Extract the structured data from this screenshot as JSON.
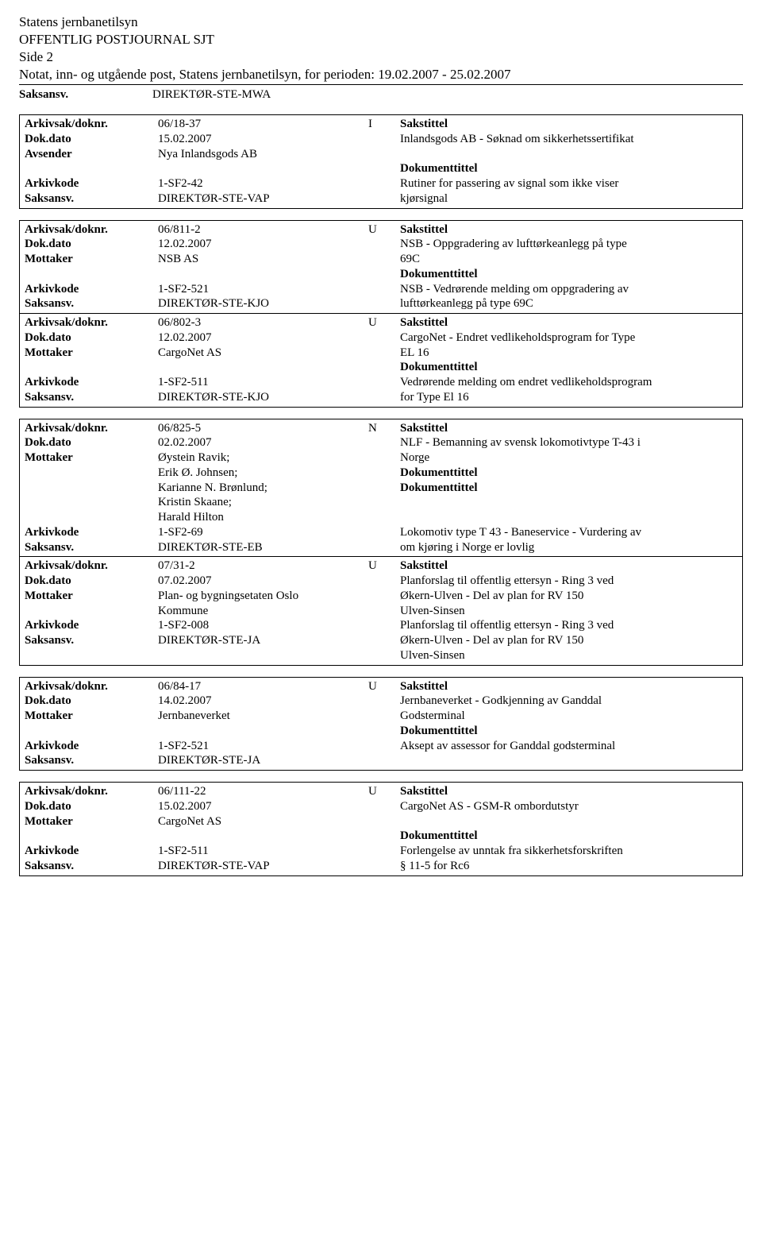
{
  "header": {
    "org": "Statens jernbanetilsyn",
    "journal": "OFFENTLIG POSTJOURNAL SJT",
    "side": "Side 2",
    "notat": "Notat, inn- og utgående post, Statens jernbanetilsyn, for perioden: 19.02.2007 - 25.02.2007",
    "saksansv_label": "Saksansv.",
    "saksansv_value": "DIREKTØR-STE-MWA"
  },
  "labels": {
    "arkivsak": "Arkivsak/doknr.",
    "dokdato": "Dok.dato",
    "avsender": "Avsender",
    "mottaker": "Mottaker",
    "arkivkode": "Arkivkode",
    "saksansv": "Saksansv.",
    "sakstittel": "Sakstittel",
    "dokumenttittel": "Dokumenttittel"
  },
  "entries": [
    {
      "arkivsak": "06/18-37",
      "iun": "I",
      "dokdato": "15.02.2007",
      "party_label": "Avsender",
      "party": "Nya Inlandsgods AB",
      "arkivkode": "1-SF2-42",
      "saksansv": "DIREKTØR-STE-VAP",
      "sakstittel": "Inlandsgods AB - Søknad om sikkerhetssertifikat",
      "dokumenttittel": "Rutiner for passering av signal som ikke viser kjørsignal"
    },
    {
      "arkivsak": "06/811-2",
      "iun": "U",
      "dokdato": "12.02.2007",
      "party_label": "Mottaker",
      "party": "NSB AS",
      "arkivkode": "1-SF2-521",
      "saksansv": "DIREKTØR-STE-KJO",
      "sakstittel": "NSB - Oppgradering av lufttørkeanlegg på type 69C",
      "dokumenttittel": "NSB - Vedrørende melding om oppgradering av lufttørkeanlegg på type 69C"
    },
    {
      "arkivsak": "06/802-3",
      "iun": "U",
      "dokdato": "12.02.2007",
      "party_label": "Mottaker",
      "party": "CargoNet AS",
      "arkivkode": "1-SF2-511",
      "saksansv": "DIREKTØR-STE-KJO",
      "sakstittel": "CargoNet - Endret vedlikeholdsprogram for Type EL 16",
      "dokumenttittel": "Vedrørende melding om endret vedlikeholdsprogram for Type El 16"
    },
    {
      "arkivsak": "06/825-5",
      "iun": "N",
      "dokdato": "02.02.2007",
      "party_label": "Mottaker",
      "party": "Øystein Ravik;\nErik Ø. Johnsen;\nKarianne N. Brønlund;\nKristin Skaane;\nHarald Hilton",
      "arkivkode": "1-SF2-69",
      "saksansv": "DIREKTØR-STE-EB",
      "sakstittel": "NLF - Bemanning av svensk lokomotivtype T-43 i Norge",
      "dokumenttittel": "Lokomotiv type T 43 - Baneservice - Vurdering av om kjøring i Norge er lovlig"
    },
    {
      "arkivsak": "07/31-2",
      "iun": "U",
      "dokdato": "07.02.2007",
      "party_label": "Mottaker",
      "party": "Plan- og bygningsetaten Oslo Kommune",
      "arkivkode": "1-SF2-008",
      "saksansv": "DIREKTØR-STE-JA",
      "sakstittel": "Planforslag til offentlig ettersyn - Ring 3 ved Økern-Ulven - Del av plan for RV 150 Ulven-Sinsen",
      "dokumenttittel": "Planforslag til offentlig ettersyn - Ring 3 ved Økern-Ulven - Del av plan for RV 150 Ulven-Sinsen"
    },
    {
      "arkivsak": "06/84-17",
      "iun": "U",
      "dokdato": "14.02.2007",
      "party_label": "Mottaker",
      "party": "Jernbaneverket",
      "arkivkode": "1-SF2-521",
      "saksansv": "DIREKTØR-STE-JA",
      "sakstittel": "Jernbaneverket - Godkjenning av Ganddal Godsterminal",
      "dokumenttittel": "Aksept av assessor for Ganddal godsterminal"
    },
    {
      "arkivsak": "06/111-22",
      "iun": "U",
      "dokdato": "15.02.2007",
      "party_label": "Mottaker",
      "party": "CargoNet AS",
      "arkivkode": "1-SF2-511",
      "saksansv": "DIREKTØR-STE-VAP",
      "sakstittel": "CargoNet AS - GSM-R ombordutstyr",
      "dokumenttittel": "Forlengelse av unntak fra sikkerhetsforskriften § 11-5 for Rc6"
    }
  ],
  "layout": {
    "double_border_after_index": [
      0,
      2,
      4,
      5
    ],
    "entry_has_blank_line_before_arkivkode": [
      0,
      2,
      5,
      6
    ],
    "entry_has_blank_line_before_dokumenttittel": [
      6
    ],
    "long_party_index": 3,
    "doktittel_at_arkivkode_for_long": true
  }
}
